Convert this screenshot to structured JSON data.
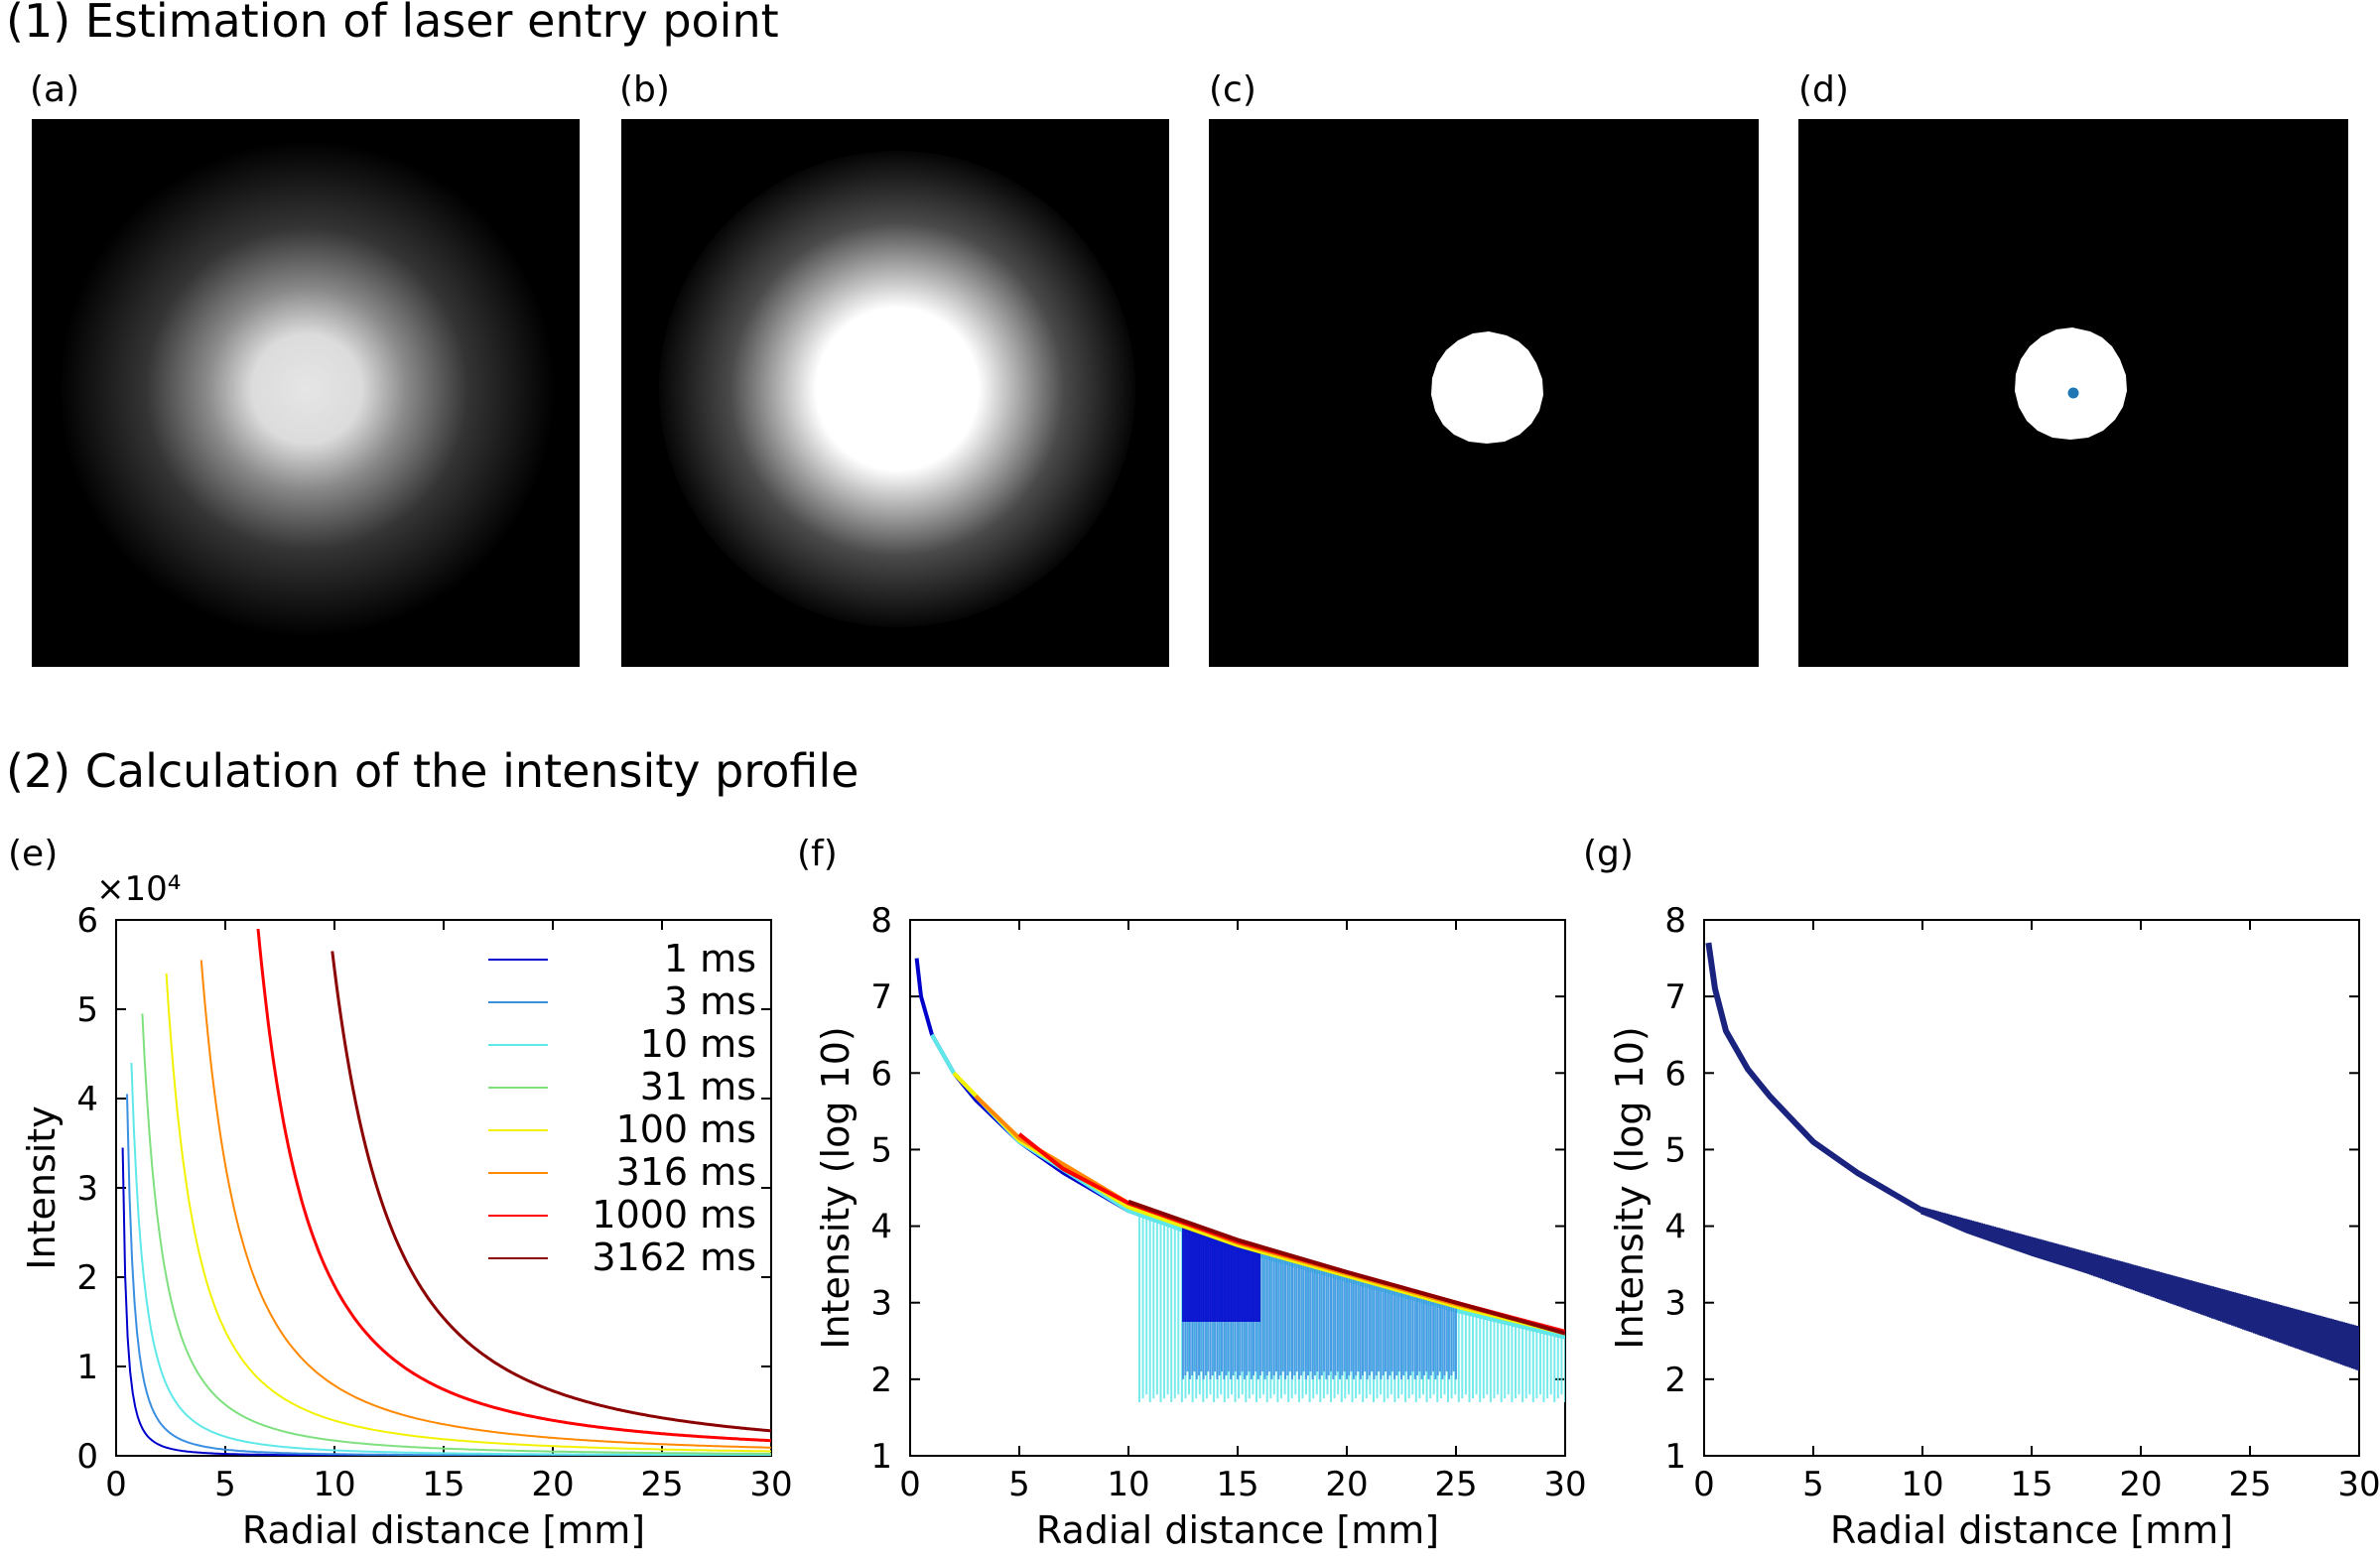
{
  "sections": {
    "estimation_title": "(1) Estimation of laser entry point",
    "profile_title": "(2) Calculation of the intensity profile"
  },
  "panels": {
    "a": "(a)",
    "b": "(b)",
    "c": "(c)",
    "d": "(d)",
    "e": "(e)",
    "f": "(f)",
    "g": "(g)"
  },
  "colors": {
    "center_marker": "#1f77b4",
    "image_background": "#000000"
  },
  "chart_data": [
    {
      "type": "line",
      "panel": "(e)",
      "xlabel": "Radial distance [mm]",
      "ylabel": "Intensity",
      "multiplier": "×10⁴",
      "xlim": [
        0,
        30
      ],
      "ylim": [
        0,
        6
      ],
      "xticks": [
        0,
        5,
        10,
        15,
        20,
        25,
        30
      ],
      "yticks": [
        0,
        1,
        2,
        3,
        4,
        5,
        6
      ],
      "legend_position": "top-right",
      "series": [
        {
          "name": "1 ms",
          "color": "#0000cc",
          "start_x": 0.3,
          "peak": 3.45,
          "decay_mm": 0.35
        },
        {
          "name": "3 ms",
          "color": "#3a8fe0",
          "start_x": 0.5,
          "peak": 4.05,
          "decay_mm": 0.6
        },
        {
          "name": "10 ms",
          "color": "#5fe8e8",
          "start_x": 0.7,
          "peak": 4.4,
          "decay_mm": 1.1
        },
        {
          "name": "31 ms",
          "color": "#7ee07e",
          "start_x": 1.2,
          "peak": 4.95,
          "decay_mm": 1.8
        },
        {
          "name": "100 ms",
          "color": "#f2f200",
          "start_x": 2.3,
          "peak": 5.4,
          "decay_mm": 2.6
        },
        {
          "name": "316 ms",
          "color": "#ff8800",
          "start_x": 3.9,
          "peak": 5.55,
          "decay_mm": 3.4
        },
        {
          "name": "1000 ms",
          "color": "#ff0000",
          "start_x": 6.5,
          "peak": 5.9,
          "decay_mm": 4.3
        },
        {
          "name": "3162 ms",
          "color": "#8b0000",
          "start_x": 9.9,
          "peak": 5.65,
          "decay_mm": 5.2
        }
      ]
    },
    {
      "type": "line",
      "panel": "(f)",
      "xlabel": "Radial distance [mm]",
      "ylabel": "Intensity (log 10)",
      "xlim": [
        0,
        30
      ],
      "ylim": [
        1,
        8
      ],
      "xticks": [
        0,
        5,
        10,
        15,
        20,
        25,
        30
      ],
      "yticks": [
        1,
        2,
        3,
        4,
        5,
        6,
        7,
        8
      ],
      "series": [
        {
          "color": "#0000cc",
          "x": [
            0.3,
            0.5,
            1,
            2,
            3,
            5,
            7,
            10,
            12,
            15,
            20,
            25,
            30
          ],
          "y": [
            7.5,
            7.0,
            6.5,
            6.0,
            5.65,
            5.1,
            4.7,
            4.2,
            4.0,
            3.7,
            3.3,
            2.9,
            2.55
          ]
        },
        {
          "color": "#3a8fe0",
          "x": [
            1,
            2,
            5,
            10,
            15,
            20,
            25,
            30
          ],
          "y": [
            6.5,
            6.0,
            5.1,
            4.2,
            3.7,
            3.3,
            2.9,
            2.55
          ]
        },
        {
          "color": "#5fe8e8",
          "x": [
            1,
            2,
            5,
            10,
            15,
            20,
            25,
            30
          ],
          "y": [
            6.5,
            6.0,
            5.1,
            4.2,
            3.7,
            3.3,
            2.9,
            2.55
          ]
        },
        {
          "color": "#f2f200",
          "x": [
            2,
            5,
            10,
            15,
            20,
            25,
            30
          ],
          "y": [
            6.0,
            5.12,
            4.25,
            3.75,
            3.35,
            2.95,
            2.6
          ]
        },
        {
          "color": "#ff8800",
          "x": [
            3,
            5,
            10,
            15,
            20,
            25,
            30
          ],
          "y": [
            5.7,
            5.15,
            4.3,
            3.78,
            3.38,
            2.98,
            2.62
          ]
        },
        {
          "color": "#ff0000",
          "x": [
            5,
            7,
            10,
            15,
            20,
            25,
            30
          ],
          "y": [
            5.2,
            4.75,
            4.3,
            3.8,
            3.4,
            3.0,
            2.62
          ]
        },
        {
          "color": "#8b0000",
          "x": [
            10,
            15,
            20,
            25,
            30
          ],
          "y": [
            4.32,
            3.82,
            3.4,
            3.0,
            2.6
          ]
        }
      ]
    },
    {
      "type": "line",
      "panel": "(g)",
      "xlabel": "Radial distance [mm]",
      "ylabel": "Intensity (log 10)",
      "xlim": [
        0,
        30
      ],
      "ylim": [
        1,
        8
      ],
      "xticks": [
        0,
        5,
        10,
        15,
        20,
        25,
        30
      ],
      "yticks": [
        1,
        2,
        3,
        4,
        5,
        6,
        7,
        8
      ],
      "series": [
        {
          "color": "#1a237e",
          "x": [
            0.2,
            0.5,
            1,
            2,
            3,
            5,
            7,
            10,
            12,
            15,
            20,
            25,
            30
          ],
          "y": [
            7.7,
            7.1,
            6.55,
            6.05,
            5.7,
            5.1,
            4.7,
            4.2,
            3.95,
            3.65,
            3.2,
            2.8,
            2.4
          ]
        }
      ]
    }
  ]
}
